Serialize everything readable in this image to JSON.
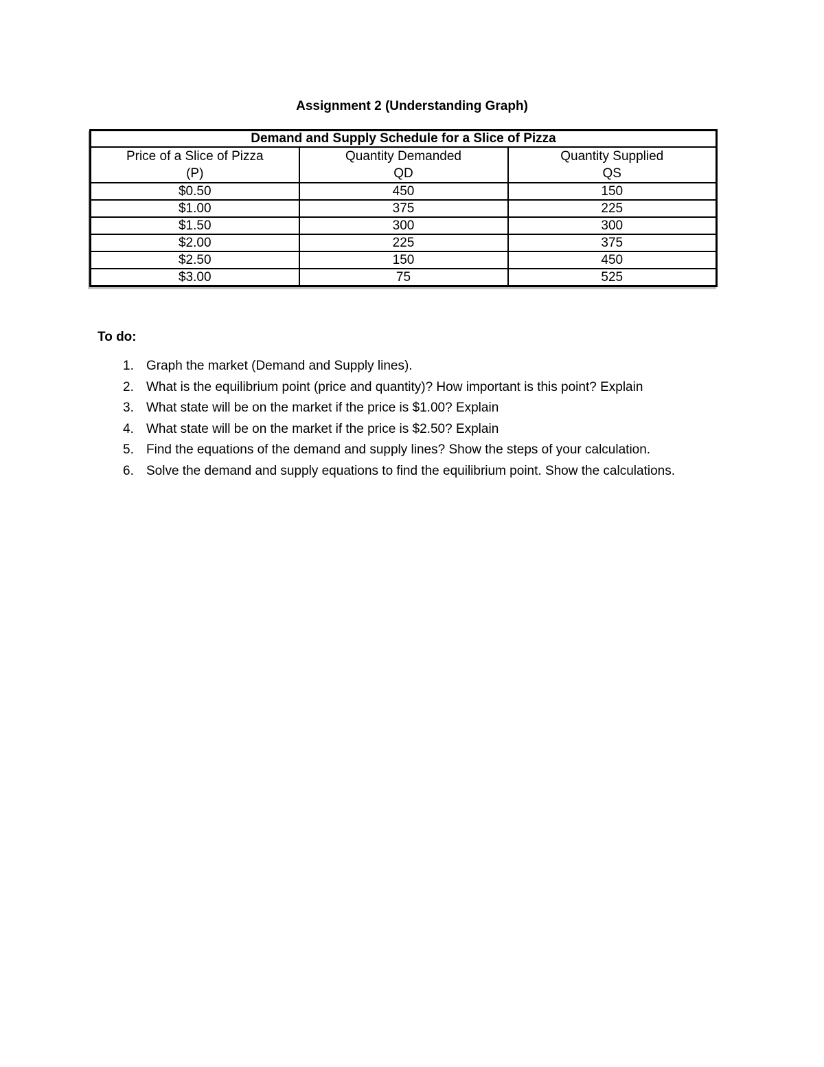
{
  "page_title": "Assignment 2 (Understanding Graph)",
  "table": {
    "caption": "Demand and Supply Schedule for a Slice of Pizza",
    "headers": [
      {
        "label": "Price of a Slice of Pizza",
        "abbr": "(P)"
      },
      {
        "label": "Quantity Demanded",
        "abbr": "QD"
      },
      {
        "label": "Quantity Supplied",
        "abbr": "QS"
      }
    ],
    "rows": [
      {
        "price": "$0.50",
        "qd": "450",
        "qs": "150"
      },
      {
        "price": "$1.00",
        "qd": "375",
        "qs": "225"
      },
      {
        "price": "$1.50",
        "qd": "300",
        "qs": "300"
      },
      {
        "price": "$2.00",
        "qd": "225",
        "qs": "375"
      },
      {
        "price": "$2.50",
        "qd": "150",
        "qs": "450"
      },
      {
        "price": "$3.00",
        "qd": "75",
        "qs": "525"
      }
    ]
  },
  "todo": {
    "heading": "To do:",
    "items": [
      {
        "number": "1.",
        "text": "Graph the market (Demand and Supply lines)."
      },
      {
        "number": "2.",
        "text": "What is the equilibrium point (price and quantity)? How important is this point? Explain"
      },
      {
        "number": "3.",
        "text": "What state will be on the market if the price is $1.00? Explain"
      },
      {
        "number": "4.",
        "text": "What state will be on the market if the price is $2.50? Explain"
      },
      {
        "number": "5.",
        "text": "Find the equations of the demand and supply lines? Show the steps of your calculation."
      },
      {
        "number": "6.",
        "text": "Solve the demand and supply equations to find the equilibrium point. Show the calculations."
      }
    ]
  }
}
